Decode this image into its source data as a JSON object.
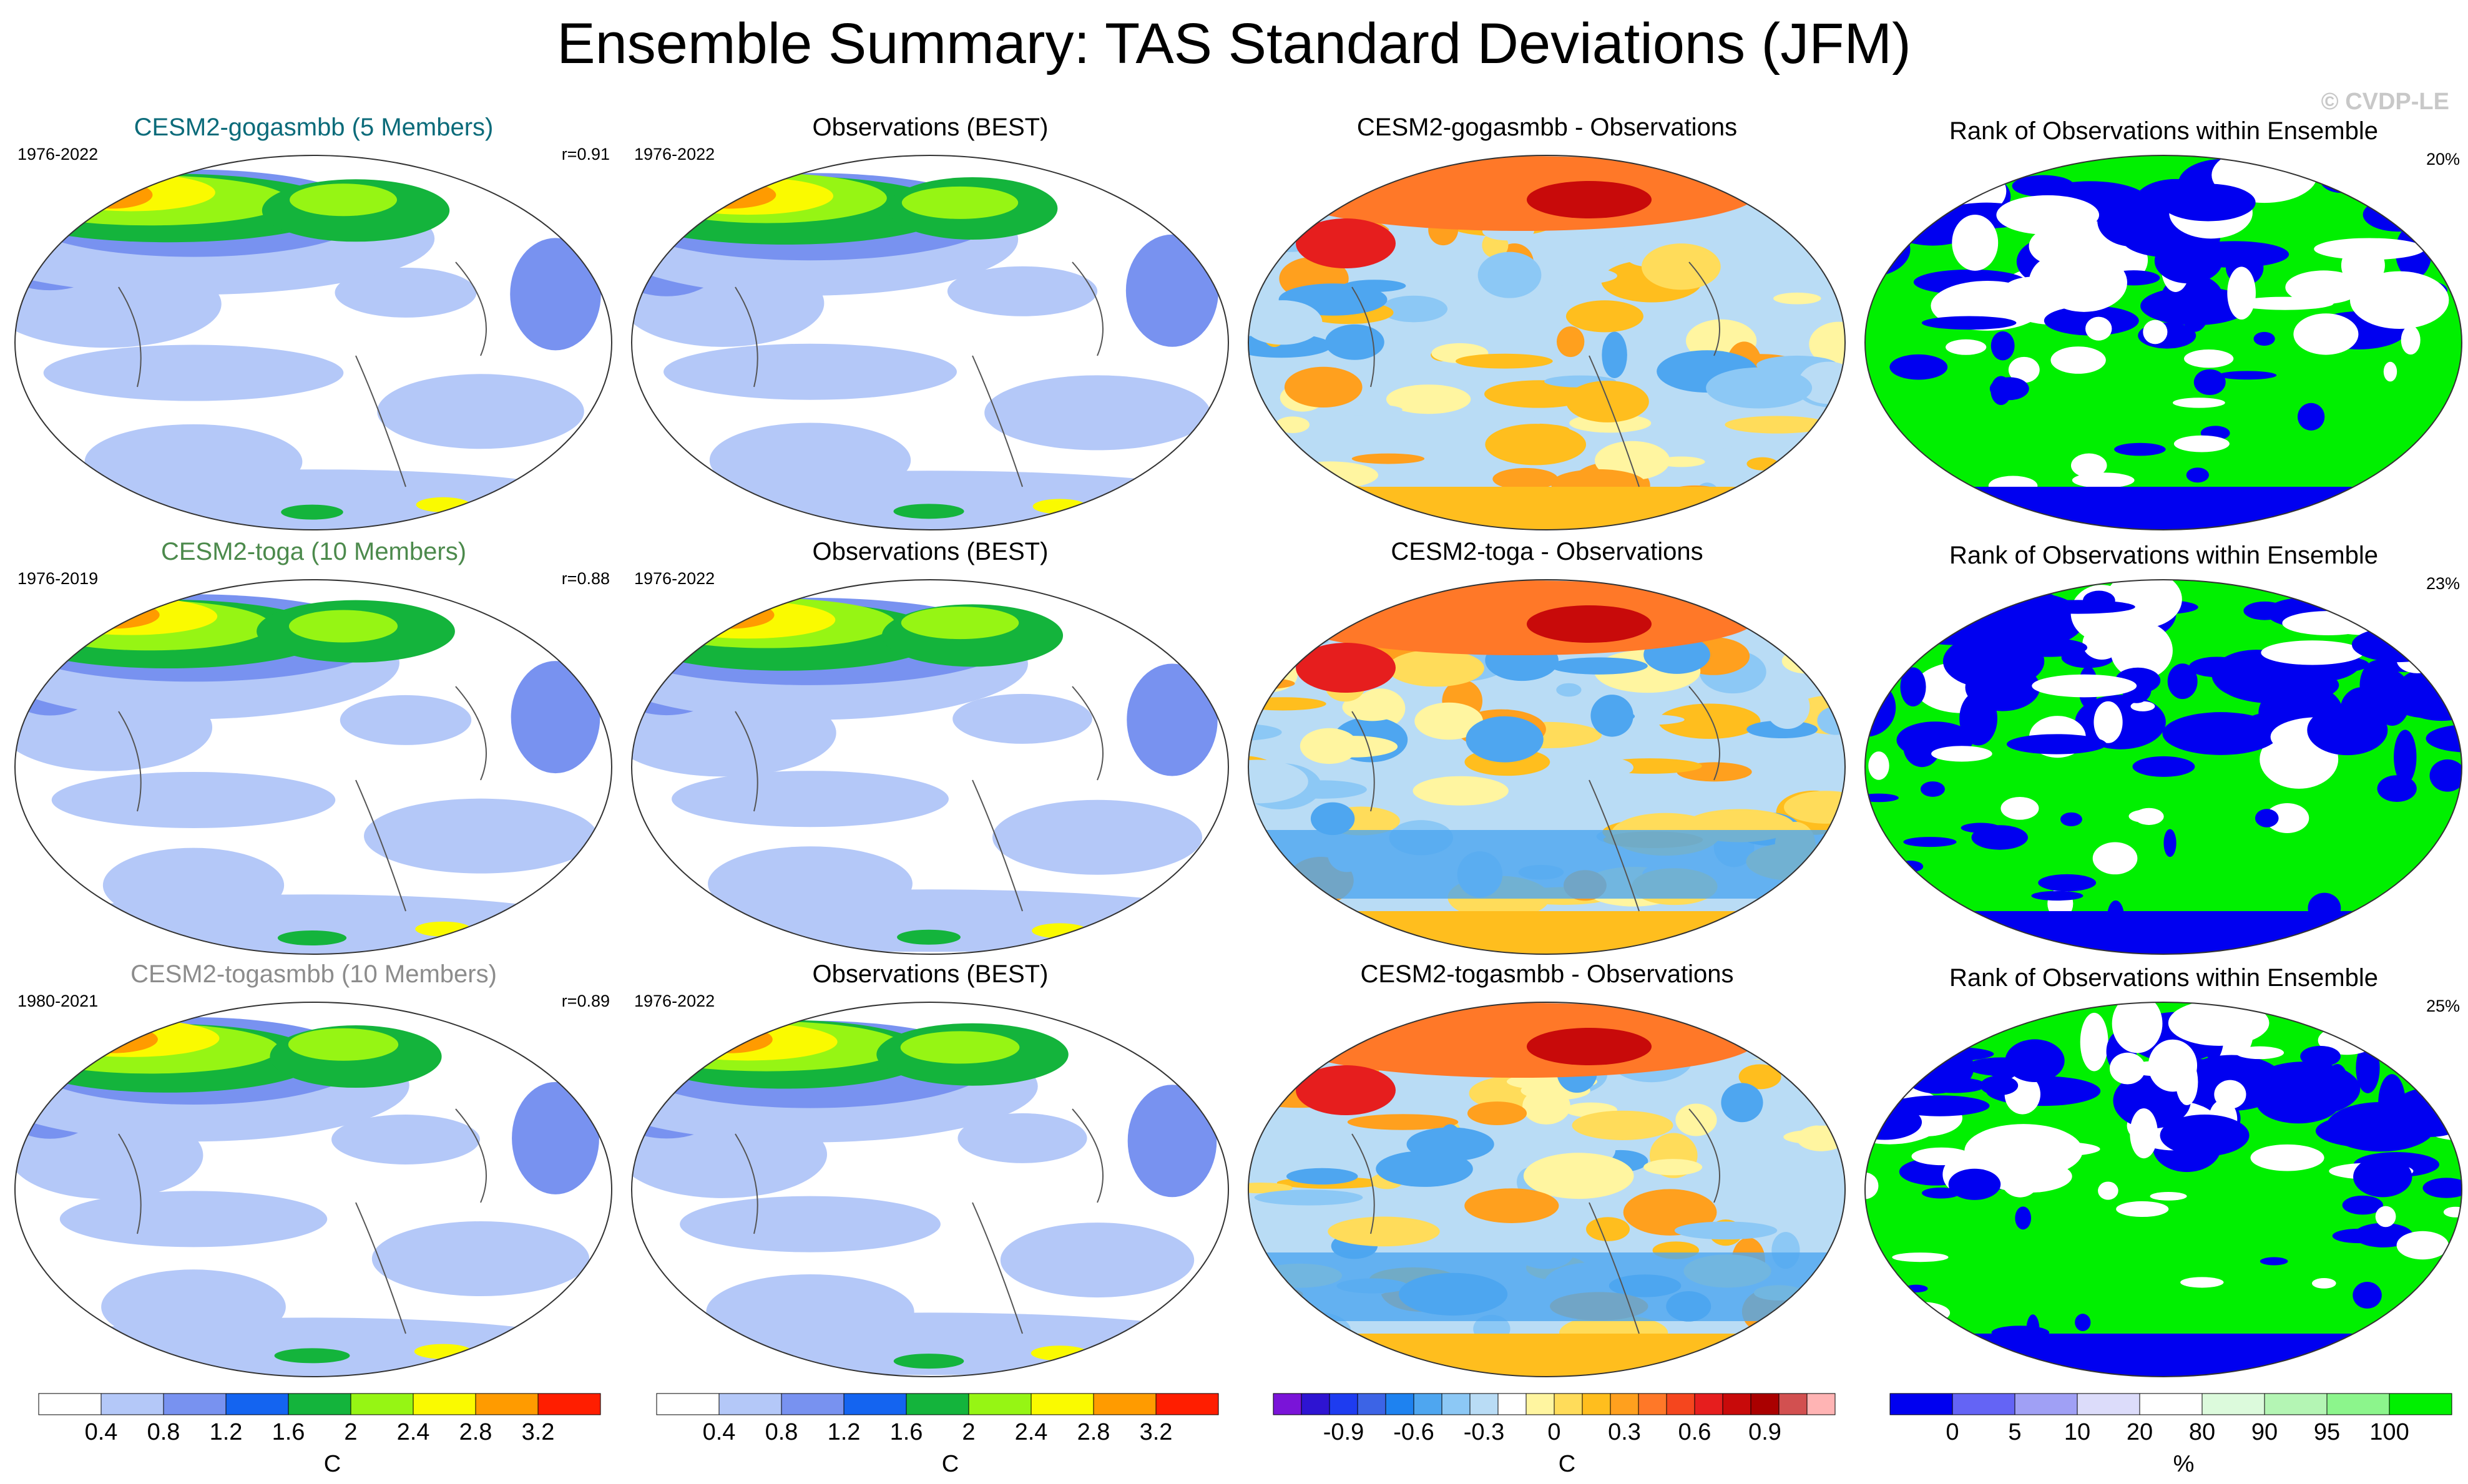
{
  "title": "Ensemble Summary: TAS Standard Deviations (JFM)",
  "watermark": "© CVDP-LE",
  "rows": [
    {
      "model": {
        "title": "CESM2-gogasmbb (5 Members)",
        "color": "#0b6b7a",
        "years": "1976-2022",
        "r": "r=0.91"
      },
      "obs": {
        "title": "Observations (BEST)",
        "years": "1976-2022"
      },
      "diff": {
        "title": "CESM2-gogasmbb - Observations"
      },
      "rank": {
        "title": "Rank of Observations within Ensemble",
        "pct": "20%"
      }
    },
    {
      "model": {
        "title": "CESM2-toga (10 Members)",
        "color": "#4c8a4c",
        "years": "1976-2019",
        "r": "r=0.88"
      },
      "obs": {
        "title": "Observations (BEST)",
        "years": "1976-2022"
      },
      "diff": {
        "title": "CESM2-toga - Observations"
      },
      "rank": {
        "title": "Rank of Observations within Ensemble",
        "pct": "23%"
      }
    },
    {
      "model": {
        "title": "CESM2-togasmbb (10 Members)",
        "color": "#8c8c8c",
        "years": "1980-2021",
        "r": "r=0.89"
      },
      "obs": {
        "title": "Observations (BEST)",
        "years": "1976-2022"
      },
      "diff": {
        "title": "CESM2-togasmbb - Observations"
      },
      "rank": {
        "title": "Rank of Observations within Ensemble",
        "pct": "25%"
      }
    }
  ],
  "chart_data": [
    {
      "type": "heatmap",
      "name": "colorbar-std",
      "units": "C",
      "colors": [
        "#ffffff",
        "#b4c8f8",
        "#7892f0",
        "#1464f0",
        "#14b43c",
        "#96f514",
        "#fafa00",
        "#ff9b00",
        "#ff1e00"
      ],
      "tick_labels": [
        "0.4",
        "0.8",
        "1.2",
        "1.6",
        "2",
        "2.4",
        "2.8",
        "3.2"
      ]
    },
    {
      "type": "heatmap",
      "name": "colorbar-std-obs",
      "units": "C",
      "colors": [
        "#ffffff",
        "#b4c8f8",
        "#7892f0",
        "#1464f0",
        "#14b43c",
        "#96f514",
        "#fafa00",
        "#ff9b00",
        "#ff1e00"
      ],
      "tick_labels": [
        "0.4",
        "0.8",
        "1.2",
        "1.6",
        "2",
        "2.4",
        "2.8",
        "3.2"
      ]
    },
    {
      "type": "heatmap",
      "name": "colorbar-diff",
      "units": "C",
      "colors": [
        "#7a14d8",
        "#2e14d2",
        "#1e3cf0",
        "#3c64e6",
        "#1e82f0",
        "#4ea6f0",
        "#8cc8f5",
        "#b9dcf5",
        "#ffffff",
        "#fff5a0",
        "#ffdc5a",
        "#ffbe1e",
        "#ffa01e",
        "#ff7828",
        "#f5461e",
        "#e61e1e",
        "#c80a0a",
        "#aa0000",
        "#d25050",
        "#ffb4b4"
      ],
      "tick_labels": [
        "-0.9",
        "-0.6",
        "-0.3",
        "0",
        "0.3",
        "0.6",
        "0.9"
      ]
    },
    {
      "type": "heatmap",
      "name": "colorbar-rank",
      "units": "%",
      "colors": [
        "#0000f0",
        "#6464f5",
        "#a0a0f5",
        "#dcdcfa",
        "#ffffff",
        "#dcfadc",
        "#b4f5b4",
        "#8cf58c",
        "#00f000"
      ],
      "tick_labels": [
        "0",
        "5",
        "10",
        "20",
        "80",
        "90",
        "95",
        "100"
      ]
    }
  ]
}
